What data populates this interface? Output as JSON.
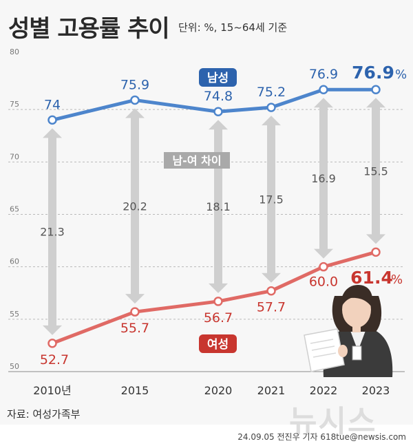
{
  "header": {
    "title": "성별 고용률 추이",
    "unit": "단위: %, 15~64세 기준"
  },
  "footer": {
    "source": "자료: 여성가족부",
    "byline": "24.09.05 전진우 기자 618tue@newsis.com",
    "watermark": "뉴시스"
  },
  "colors": {
    "male": "#4d85cc",
    "male_dark": "#2d63ad",
    "female": "#e06a65",
    "female_dark": "#c8362f",
    "gap_arrow": "#cfcfcf"
  },
  "chart_data": {
    "type": "line",
    "title": "성별 고용률 추이",
    "unit_note": "단위: %, 15~64세 기준",
    "categories": [
      "2010년",
      "2015",
      "2020",
      "2021",
      "2022",
      "2023"
    ],
    "y_ticks": [
      "80",
      "75",
      "70",
      "65",
      "60",
      "55",
      "50"
    ],
    "ylim": [
      50,
      80
    ],
    "grid": true,
    "series": [
      {
        "name": "남성",
        "values": [
          74,
          75.9,
          74.8,
          75.2,
          76.9,
          76.9
        ],
        "labels": [
          "74",
          "75.9",
          "74.8",
          "75.2",
          "76.9",
          "76.9"
        ]
      },
      {
        "name": "여성",
        "values": [
          52.7,
          55.7,
          56.7,
          57.7,
          60.0,
          61.4
        ],
        "labels": [
          "52.7",
          "55.7",
          "56.7",
          "57.7",
          "60.0",
          "61.4"
        ]
      }
    ],
    "gap": {
      "name": "남-여 차이",
      "values": [
        21.3,
        20.2,
        18.1,
        17.5,
        16.9,
        15.5
      ],
      "labels": [
        "21.3",
        "20.2",
        "18.1",
        "17.5",
        "16.9",
        "15.5"
      ]
    },
    "last_value_suffix": "%"
  }
}
